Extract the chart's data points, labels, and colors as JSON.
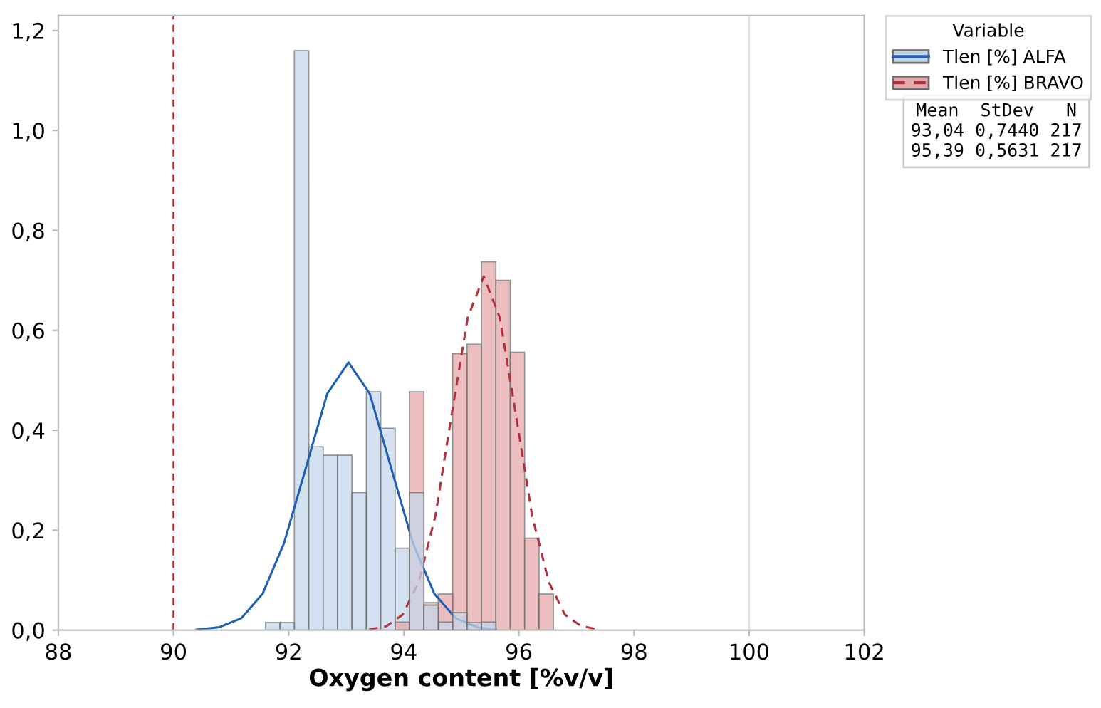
{
  "chart_data": {
    "type": "histogram",
    "xlabel": "Oxygen content [%v/v]",
    "bins": [
      91.6,
      91.85,
      92.1,
      92.35,
      92.6,
      92.85,
      93.1,
      93.35,
      93.6,
      93.85,
      94.1,
      94.35,
      94.6,
      94.85,
      95.1,
      95.35,
      95.6,
      95.85,
      96.1,
      96.35,
      96.6
    ],
    "series": [
      {
        "name": "Tlen [%] ALFA",
        "color": "#c6d7eb",
        "values": [
          0.015,
          0.015,
          1.16,
          0.367,
          0.35,
          0.35,
          0.275,
          0.477,
          0.404,
          0.164,
          0.275,
          0.05,
          0.016,
          0.035,
          0.015,
          0.016,
          null,
          null,
          null,
          null
        ]
      },
      {
        "name": "Tlen [%] BRAVO",
        "color": "#e6a9ab",
        "values": [
          null,
          null,
          null,
          null,
          null,
          null,
          null,
          null,
          null,
          0.016,
          0.477,
          0.055,
          0.072,
          0.553,
          0.572,
          0.737,
          0.7,
          0.556,
          0.184,
          0.072
        ]
      },
      {
        "type": "line",
        "color": "#1f5fb4",
        "line_style": "solid",
        "x": [
          90.4,
          90.8,
          91.18,
          91.55,
          91.92,
          92.3,
          92.67,
          93.04,
          93.41,
          93.78,
          94.16,
          94.53,
          94.9,
          95.27,
          95.6
        ],
        "values": [
          0.001,
          0.006,
          0.024,
          0.073,
          0.174,
          0.325,
          0.473,
          0.536,
          0.473,
          0.325,
          0.174,
          0.073,
          0.024,
          0.006,
          0.001
        ]
      },
      {
        "type": "line",
        "color": "#b5303a",
        "line_style": "dashed",
        "x": [
          93.4,
          93.7,
          93.98,
          94.26,
          94.55,
          94.83,
          95.11,
          95.39,
          95.67,
          95.95,
          96.23,
          96.52,
          96.8,
          97.08,
          97.4
        ],
        "values": [
          0.001,
          0.008,
          0.031,
          0.096,
          0.229,
          0.43,
          0.625,
          0.708,
          0.625,
          0.43,
          0.229,
          0.096,
          0.031,
          0.008,
          0.001
        ]
      }
    ],
    "xlim": [
      88,
      102
    ],
    "xticks": [
      88,
      90,
      92,
      94,
      96,
      98,
      100,
      102
    ],
    "ylim": [
      0,
      1.23
    ],
    "yticks": [
      {
        "value": 0,
        "label": "0,0"
      },
      {
        "value": 0.2,
        "label": "0,2"
      },
      {
        "value": 0.4,
        "label": "0,4"
      },
      {
        "value": 0.6,
        "label": "0,6"
      },
      {
        "value": 0.8,
        "label": "0,8"
      },
      {
        "value": 1.0,
        "label": "1,0"
      },
      {
        "value": 1.2,
        "label": "1,2"
      }
    ],
    "ref_lines": [
      {
        "axis": "x",
        "value": 90,
        "color": "#b22222",
        "line_style": "dashed"
      },
      {
        "axis": "x",
        "value": 100,
        "color": "#e0e0e0",
        "line_style": "solid"
      }
    ],
    "legend": "top right",
    "legend_title": "Variable",
    "annotations": [
      "Mean  StDev   N",
      "93,04 0,7440 217",
      "95,39 0,5631 217"
    ],
    "grid": false
  }
}
